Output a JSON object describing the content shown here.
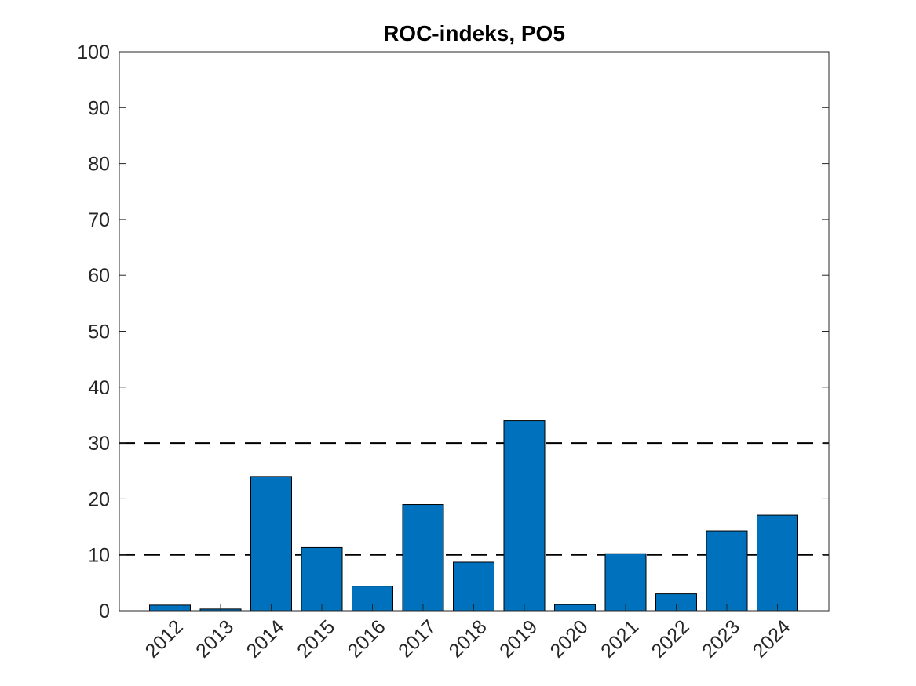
{
  "chart_data": {
    "type": "bar",
    "title": "ROC-indeks, PO5",
    "xlabel": "",
    "ylabel": "",
    "categories": [
      "2012",
      "2013",
      "2014",
      "2015",
      "2016",
      "2017",
      "2018",
      "2019",
      "2020",
      "2021",
      "2022",
      "2023",
      "2024"
    ],
    "values": [
      1.0,
      0.3,
      24.0,
      11.3,
      4.4,
      19.0,
      8.7,
      34.0,
      1.1,
      10.2,
      3.0,
      14.3,
      17.1
    ],
    "ylim": [
      0,
      100
    ],
    "yticks": [
      0,
      10,
      20,
      30,
      40,
      50,
      60,
      70,
      80,
      90,
      100
    ],
    "reference_lines": [
      {
        "y": 10,
        "style": "dashed",
        "color": "#000000"
      },
      {
        "y": 30,
        "style": "dashed",
        "color": "#000000"
      }
    ],
    "bar_color": "#0072BD",
    "grid": false,
    "legend": null
  }
}
